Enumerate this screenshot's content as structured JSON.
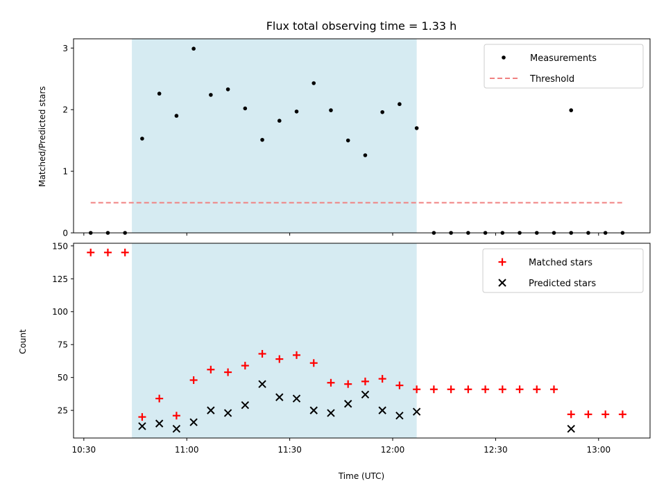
{
  "chart_data": [
    {
      "type": "scatter",
      "title": "Flux total observing time = 1.33 h",
      "xlabel": "",
      "ylabel": "Matched/Predicted stars",
      "ylim": [
        0,
        3.15
      ],
      "yticks": [
        0,
        1,
        2,
        3
      ],
      "xlim": [
        "10:27",
        "13:15"
      ],
      "shaded_interval": [
        "10:44",
        "12:07"
      ],
      "legend_position": "upper right",
      "colors": {
        "measurements": "#000000",
        "threshold": "#f08080",
        "shade": "#add8e6"
      },
      "series": [
        {
          "name": "Measurements",
          "marker": "dot",
          "x": [
            "10:32",
            "10:37",
            "10:42",
            "10:47",
            "10:52",
            "10:57",
            "11:02",
            "11:07",
            "11:12",
            "11:17",
            "11:22",
            "11:27",
            "11:32",
            "11:37",
            "11:42",
            "11:47",
            "11:52",
            "11:57",
            "12:02",
            "12:07",
            "12:12",
            "12:17",
            "12:22",
            "12:27",
            "12:32",
            "12:37",
            "12:42",
            "12:47",
            "12:52",
            "12:57",
            "13:02",
            "13:07"
          ],
          "y": [
            0,
            0,
            0,
            1.53,
            2.26,
            1.9,
            2.99,
            2.24,
            2.33,
            2.02,
            1.51,
            1.82,
            1.97,
            2.43,
            1.99,
            1.5,
            1.26,
            1.96,
            2.09,
            1.7,
            0,
            0,
            0,
            0,
            0,
            0,
            0,
            0,
            0,
            0,
            0,
            0
          ],
          "missing": [
            "12:52"
          ],
          "y_at_missing": 1.99
        },
        {
          "name": "Threshold",
          "style": "dashed",
          "x": [
            "10:32",
            "13:07"
          ],
          "y": [
            0.49,
            0.49
          ]
        }
      ]
    },
    {
      "type": "scatter",
      "title": "",
      "xlabel": "Time (UTC)",
      "ylabel": "Count",
      "ylim": [
        4,
        152
      ],
      "yticks": [
        25,
        50,
        75,
        100,
        125,
        150
      ],
      "xlim": [
        "10:27",
        "13:15"
      ],
      "xticks": [
        "10:30",
        "11:00",
        "11:30",
        "12:00",
        "12:30",
        "13:00"
      ],
      "shaded_interval": [
        "10:44",
        "12:07"
      ],
      "legend_position": "upper right",
      "colors": {
        "matched": "#ff0000",
        "predicted": "#000000",
        "shade": "#add8e6"
      },
      "series": [
        {
          "name": "Matched stars",
          "marker": "plus",
          "x": [
            "10:32",
            "10:37",
            "10:42",
            "10:47",
            "10:52",
            "10:57",
            "11:02",
            "11:07",
            "11:12",
            "11:17",
            "11:22",
            "11:27",
            "11:32",
            "11:37",
            "11:42",
            "11:47",
            "11:52",
            "11:57",
            "12:02",
            "12:07",
            "12:12",
            "12:17",
            "12:22",
            "12:27",
            "12:32",
            "12:37",
            "12:42",
            "12:47",
            "12:52",
            "12:57",
            "13:02",
            "13:07"
          ],
          "y": [
            145,
            145,
            145,
            20,
            34,
            21,
            48,
            56,
            54,
            59,
            68,
            64,
            67,
            61,
            46,
            45,
            47,
            49,
            44,
            41,
            41,
            41,
            41,
            41,
            41,
            41,
            41,
            41,
            22,
            22,
            22,
            22
          ]
        },
        {
          "name": "Predicted stars",
          "marker": "x",
          "x": [
            "10:47",
            "10:52",
            "10:57",
            "11:02",
            "11:07",
            "11:12",
            "11:17",
            "11:22",
            "11:27",
            "11:32",
            "11:37",
            "11:42",
            "11:47",
            "11:52",
            "11:57",
            "12:02",
            "12:07",
            "12:52"
          ],
          "y": [
            13,
            15,
            11,
            16,
            25,
            23,
            29,
            45,
            35,
            34,
            25,
            23,
            30,
            37,
            25,
            21,
            24,
            11
          ]
        }
      ]
    }
  ]
}
